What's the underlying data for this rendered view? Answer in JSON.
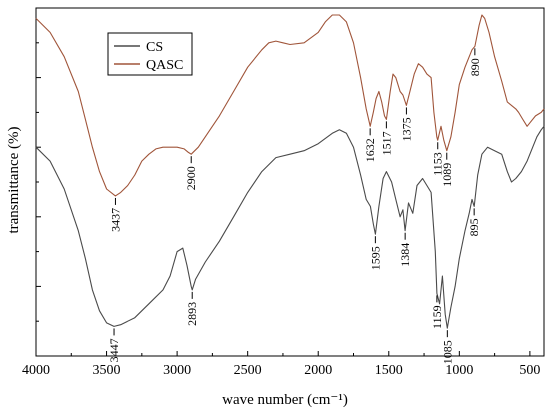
{
  "chart_data": {
    "type": "line",
    "xlabel": "wave number (cm⁻¹)",
    "ylabel": "transmittance (%)",
    "xlim": [
      4000,
      400
    ],
    "x_reversed": true,
    "x_ticks": [
      4000,
      3500,
      3000,
      2500,
      2000,
      1500,
      1000,
      500
    ],
    "y_tick_labels_shown": false,
    "legend": {
      "placement": "top-left",
      "entries": [
        "CS",
        "QASC"
      ]
    },
    "colors": {
      "CS": "#4a4a4a",
      "QASC": "#a0553a",
      "axis": "#000000"
    },
    "series": [
      {
        "name": "CS",
        "points": [
          [
            4000,
            0.6
          ],
          [
            3900,
            0.56
          ],
          [
            3800,
            0.48
          ],
          [
            3700,
            0.36
          ],
          [
            3650,
            0.28
          ],
          [
            3600,
            0.19
          ],
          [
            3550,
            0.13
          ],
          [
            3500,
            0.095
          ],
          [
            3447,
            0.085
          ],
          [
            3400,
            0.09
          ],
          [
            3300,
            0.11
          ],
          [
            3200,
            0.15
          ],
          [
            3100,
            0.19
          ],
          [
            3050,
            0.23
          ],
          [
            3000,
            0.3
          ],
          [
            2960,
            0.31
          ],
          [
            2930,
            0.26
          ],
          [
            2900,
            0.2
          ],
          [
            2893,
            0.19
          ],
          [
            2870,
            0.22
          ],
          [
            2800,
            0.27
          ],
          [
            2700,
            0.33
          ],
          [
            2600,
            0.4
          ],
          [
            2500,
            0.47
          ],
          [
            2400,
            0.53
          ],
          [
            2300,
            0.57
          ],
          [
            2200,
            0.58
          ],
          [
            2100,
            0.59
          ],
          [
            2000,
            0.61
          ],
          [
            1900,
            0.64
          ],
          [
            1850,
            0.65
          ],
          [
            1800,
            0.64
          ],
          [
            1750,
            0.6
          ],
          [
            1700,
            0.52
          ],
          [
            1660,
            0.45
          ],
          [
            1630,
            0.43
          ],
          [
            1610,
            0.38
          ],
          [
            1595,
            0.35
          ],
          [
            1570,
            0.43
          ],
          [
            1540,
            0.51
          ],
          [
            1517,
            0.53
          ],
          [
            1480,
            0.5
          ],
          [
            1450,
            0.45
          ],
          [
            1420,
            0.4
          ],
          [
            1400,
            0.42
          ],
          [
            1384,
            0.36
          ],
          [
            1360,
            0.44
          ],
          [
            1330,
            0.41
          ],
          [
            1300,
            0.49
          ],
          [
            1260,
            0.51
          ],
          [
            1230,
            0.49
          ],
          [
            1200,
            0.47
          ],
          [
            1170,
            0.3
          ],
          [
            1159,
            0.18
          ],
          [
            1140,
            0.15
          ],
          [
            1120,
            0.23
          ],
          [
            1100,
            0.12
          ],
          [
            1085,
            0.08
          ],
          [
            1060,
            0.14
          ],
          [
            1030,
            0.2
          ],
          [
            1000,
            0.28
          ],
          [
            960,
            0.36
          ],
          [
            930,
            0.41
          ],
          [
            910,
            0.45
          ],
          [
            895,
            0.43
          ],
          [
            870,
            0.52
          ],
          [
            840,
            0.58
          ],
          [
            800,
            0.6
          ],
          [
            750,
            0.59
          ],
          [
            700,
            0.58
          ],
          [
            660,
            0.53
          ],
          [
            630,
            0.5
          ],
          [
            600,
            0.51
          ],
          [
            560,
            0.53
          ],
          [
            520,
            0.56
          ],
          [
            480,
            0.6
          ],
          [
            450,
            0.63
          ],
          [
            420,
            0.65
          ],
          [
            400,
            0.66
          ]
        ]
      },
      {
        "name": "QASC",
        "points": [
          [
            4000,
            0.97
          ],
          [
            3900,
            0.93
          ],
          [
            3800,
            0.86
          ],
          [
            3700,
            0.76
          ],
          [
            3650,
            0.68
          ],
          [
            3600,
            0.6
          ],
          [
            3550,
            0.53
          ],
          [
            3500,
            0.48
          ],
          [
            3437,
            0.46
          ],
          [
            3400,
            0.47
          ],
          [
            3350,
            0.49
          ],
          [
            3300,
            0.52
          ],
          [
            3250,
            0.56
          ],
          [
            3200,
            0.58
          ],
          [
            3150,
            0.595
          ],
          [
            3100,
            0.6
          ],
          [
            3050,
            0.6
          ],
          [
            3000,
            0.6
          ],
          [
            2950,
            0.595
          ],
          [
            2920,
            0.585
          ],
          [
            2900,
            0.58
          ],
          [
            2850,
            0.6
          ],
          [
            2800,
            0.63
          ],
          [
            2700,
            0.69
          ],
          [
            2600,
            0.76
          ],
          [
            2500,
            0.83
          ],
          [
            2400,
            0.88
          ],
          [
            2350,
            0.9
          ],
          [
            2300,
            0.905
          ],
          [
            2250,
            0.9
          ],
          [
            2200,
            0.895
          ],
          [
            2100,
            0.9
          ],
          [
            2000,
            0.93
          ],
          [
            1950,
            0.96
          ],
          [
            1900,
            0.98
          ],
          [
            1850,
            0.98
          ],
          [
            1800,
            0.96
          ],
          [
            1750,
            0.9
          ],
          [
            1700,
            0.8
          ],
          [
            1660,
            0.71
          ],
          [
            1632,
            0.66
          ],
          [
            1610,
            0.7
          ],
          [
            1590,
            0.74
          ],
          [
            1570,
            0.76
          ],
          [
            1550,
            0.73
          ],
          [
            1530,
            0.69
          ],
          [
            1517,
            0.68
          ],
          [
            1490,
            0.76
          ],
          [
            1470,
            0.81
          ],
          [
            1450,
            0.8
          ],
          [
            1420,
            0.76
          ],
          [
            1400,
            0.75
          ],
          [
            1375,
            0.72
          ],
          [
            1350,
            0.76
          ],
          [
            1320,
            0.81
          ],
          [
            1290,
            0.84
          ],
          [
            1260,
            0.83
          ],
          [
            1230,
            0.81
          ],
          [
            1200,
            0.8
          ],
          [
            1180,
            0.7
          ],
          [
            1160,
            0.63
          ],
          [
            1153,
            0.62
          ],
          [
            1130,
            0.66
          ],
          [
            1110,
            0.62
          ],
          [
            1089,
            0.59
          ],
          [
            1060,
            0.63
          ],
          [
            1030,
            0.7
          ],
          [
            1000,
            0.78
          ],
          [
            960,
            0.83
          ],
          [
            930,
            0.86
          ],
          [
            910,
            0.88
          ],
          [
            890,
            0.89
          ],
          [
            860,
            0.95
          ],
          [
            840,
            0.98
          ],
          [
            820,
            0.97
          ],
          [
            790,
            0.93
          ],
          [
            750,
            0.86
          ],
          [
            700,
            0.79
          ],
          [
            660,
            0.73
          ],
          [
            630,
            0.72
          ],
          [
            600,
            0.71
          ],
          [
            580,
            0.7
          ],
          [
            550,
            0.68
          ],
          [
            520,
            0.66
          ],
          [
            500,
            0.67
          ],
          [
            460,
            0.69
          ],
          [
            420,
            0.7
          ],
          [
            400,
            0.71
          ]
        ]
      }
    ],
    "annotations": [
      {
        "series": "CS",
        "x": 3447,
        "text": "3447"
      },
      {
        "series": "CS",
        "x": 2893,
        "text": "2893"
      },
      {
        "series": "CS",
        "x": 1595,
        "text": "1595"
      },
      {
        "series": "CS",
        "x": 1384,
        "text": "1384"
      },
      {
        "series": "CS",
        "x": 1159,
        "text": "1159"
      },
      {
        "series": "CS",
        "x": 1085,
        "text": "1085"
      },
      {
        "series": "CS",
        "x": 895,
        "text": "895"
      },
      {
        "series": "QASC",
        "x": 3437,
        "text": "3437"
      },
      {
        "series": "QASC",
        "x": 2900,
        "text": "2900"
      },
      {
        "series": "QASC",
        "x": 1632,
        "text": "1632"
      },
      {
        "series": "QASC",
        "x": 1517,
        "text": "1517"
      },
      {
        "series": "QASC",
        "x": 1375,
        "text": "1375"
      },
      {
        "series": "QASC",
        "x": 1153,
        "text": "1153"
      },
      {
        "series": "QASC",
        "x": 1089,
        "text": "1089"
      },
      {
        "series": "QASC",
        "x": 890,
        "text": "890"
      }
    ]
  }
}
